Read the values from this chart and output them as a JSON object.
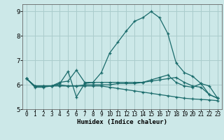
{
  "xlabel": "Humidex (Indice chaleur)",
  "xlim": [
    -0.5,
    23.5
  ],
  "ylim": [
    5.0,
    9.3
  ],
  "yticks": [
    5,
    6,
    7,
    8,
    9
  ],
  "xticks": [
    0,
    1,
    2,
    3,
    4,
    5,
    6,
    7,
    8,
    9,
    10,
    11,
    12,
    13,
    14,
    15,
    16,
    17,
    18,
    19,
    20,
    21,
    22,
    23
  ],
  "bg_color": "#cce8e8",
  "grid_color": "#aacccc",
  "line_color": "#1a6b6b",
  "series": [
    [
      6.25,
      5.9,
      5.9,
      5.95,
      6.1,
      6.15,
      6.6,
      6.1,
      6.1,
      6.5,
      7.3,
      7.75,
      8.2,
      8.6,
      8.75,
      9.0,
      8.75,
      8.1,
      6.9,
      6.5,
      6.35,
      6.05,
      5.95,
      5.45
    ],
    [
      6.25,
      5.95,
      5.95,
      5.95,
      6.05,
      6.55,
      5.5,
      6.05,
      6.1,
      6.1,
      6.1,
      6.1,
      6.1,
      6.1,
      6.1,
      6.2,
      6.3,
      6.4,
      6.1,
      5.95,
      5.9,
      6.05,
      5.6,
      5.45
    ],
    [
      6.25,
      5.95,
      5.95,
      5.95,
      6.0,
      5.95,
      5.95,
      6.0,
      6.0,
      6.0,
      6.0,
      6.05,
      6.05,
      6.05,
      6.1,
      6.15,
      6.2,
      6.25,
      6.3,
      6.1,
      5.95,
      5.9,
      5.6,
      5.45
    ],
    [
      6.25,
      5.95,
      5.95,
      5.95,
      5.95,
      5.95,
      5.95,
      5.95,
      5.95,
      5.95,
      5.9,
      5.85,
      5.8,
      5.75,
      5.7,
      5.65,
      5.6,
      5.55,
      5.5,
      5.45,
      5.42,
      5.4,
      5.38,
      5.35
    ]
  ],
  "figsize": [
    3.2,
    2.0
  ],
  "dpi": 100
}
